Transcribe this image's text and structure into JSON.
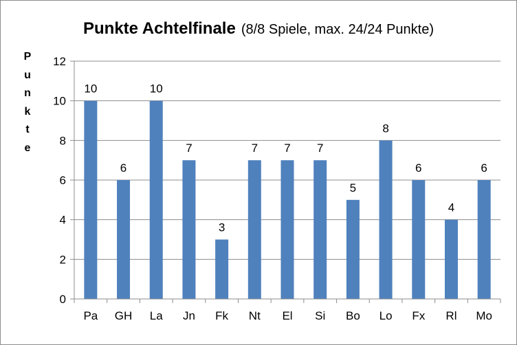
{
  "chart_data": {
    "type": "bar",
    "title": "Punkte Achtelfinale",
    "subtitle": "(8/8 Spiele, max. 24/24 Punkte)",
    "xlabel": "",
    "ylabel": "Punkte",
    "ylim": [
      0,
      12
    ],
    "yticks": [
      0,
      2,
      4,
      6,
      8,
      10,
      12
    ],
    "grid": true,
    "categories": [
      "Pa",
      "GH",
      "La",
      "Jn",
      "Fk",
      "Nt",
      "El",
      "Si",
      "Bo",
      "Lo",
      "Fx",
      "Rl",
      "Mo"
    ],
    "values": [
      10,
      6,
      10,
      7,
      3,
      7,
      7,
      7,
      5,
      8,
      6,
      4,
      6
    ],
    "data_labels": true,
    "bar_color": "#4f81bd"
  }
}
